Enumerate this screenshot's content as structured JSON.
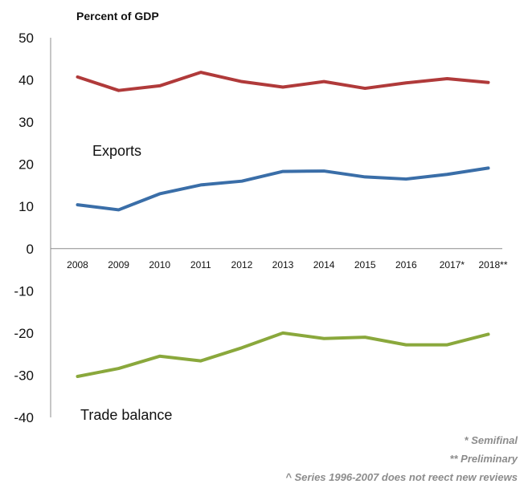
{
  "chart_data": {
    "type": "line",
    "title": "Percent of  GDP",
    "categories": [
      "2008",
      "2009",
      "2010",
      "2011",
      "2012",
      "2013",
      "2014",
      "2015",
      "2016",
      "2017*",
      "2018**"
    ],
    "ylim": [
      -40,
      50
    ],
    "yticks": [
      50,
      40,
      30,
      20,
      10,
      0,
      -10,
      -20,
      -30,
      -40
    ],
    "grid": false,
    "series": [
      {
        "name": "",
        "color": "#b03a3a",
        "values": [
          40.7,
          37.5,
          38.6,
          41.8,
          39.6,
          38.3,
          39.6,
          38.0,
          39.3,
          40.3,
          39.4
        ]
      },
      {
        "name": "Exports",
        "color": "#3a6ea8",
        "values": [
          10.4,
          9.2,
          13.0,
          15.1,
          16.0,
          18.3,
          18.4,
          17.0,
          16.5,
          17.6,
          19.1
        ]
      },
      {
        "name": "Trade balance",
        "color": "#8aa83c",
        "values": [
          -30.3,
          -28.4,
          -25.5,
          -26.6,
          -23.5,
          -20.0,
          -21.3,
          -21.0,
          -22.8,
          -22.8,
          -20.3
        ]
      }
    ],
    "notes": [
      "* Semifinal",
      "** Preliminary",
      "^ Series 1996-2007 does not reect new reviews"
    ]
  }
}
